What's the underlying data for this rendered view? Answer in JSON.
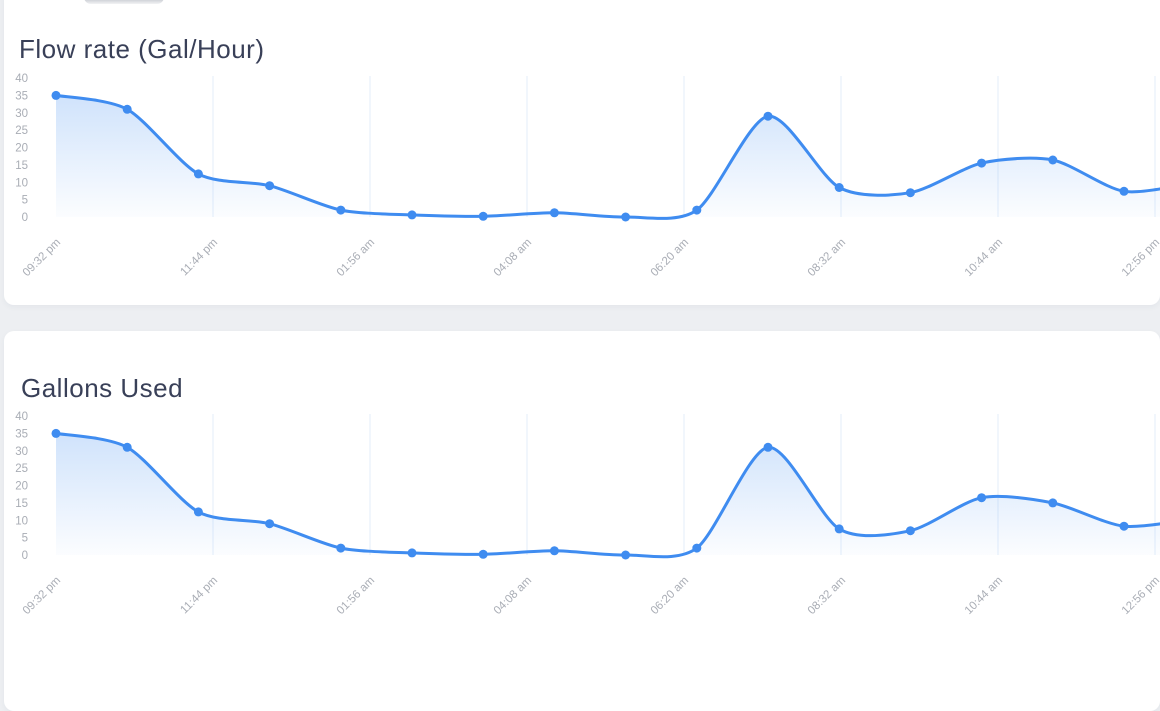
{
  "page": {
    "background_color": "#edeff2",
    "card_background_color": "#ffffff",
    "title_color": "#394058",
    "axis_label_color": "#a9adb5",
    "gridline_color": "#e3edfa",
    "accent_blue": "#3f8cf0"
  },
  "chart_data": [
    {
      "type": "area",
      "title": "Flow rate (Gal/Hour)",
      "x_tick_labels": [
        "09:32 pm",
        "11:44 pm",
        "01:56 am",
        "04:08 am",
        "06:20 am",
        "08:32 am",
        "10:44 am",
        "12:56 pm"
      ],
      "y_ticks": [
        0,
        5,
        10,
        15,
        20,
        25,
        30,
        35,
        40
      ],
      "ylim": [
        0,
        40
      ],
      "values": [
        35,
        31,
        12.4,
        9,
        2,
        0.6,
        0.2,
        1.2,
        0,
        2,
        29,
        8.5,
        7,
        15.5,
        16.4,
        7.4
      ],
      "edge_continuation_value": 10,
      "line_color": "#3f8cf0",
      "marker_color": "#3f8cf0",
      "fill_top_color": "rgba(63,140,240,0.28)",
      "fill_bottom_color": "rgba(63,140,240,0.02)",
      "grid": "vertical-only",
      "legend": "none"
    },
    {
      "type": "area",
      "title": "Gallons Used",
      "x_tick_labels": [
        "09:32 pm",
        "11:44 pm",
        "01:56 am",
        "04:08 am",
        "06:20 am",
        "08:32 am",
        "10:44 am",
        "12:56 pm"
      ],
      "y_ticks": [
        0,
        5,
        10,
        15,
        20,
        25,
        30,
        35,
        40
      ],
      "ylim": [
        0,
        40
      ],
      "values": [
        35,
        31,
        12.4,
        9,
        2,
        0.6,
        0.2,
        1.2,
        0,
        2,
        31,
        7.5,
        7,
        16.5,
        15,
        8.3
      ],
      "edge_continuation_value": 10.5,
      "line_color": "#3f8cf0",
      "marker_color": "#3f8cf0",
      "fill_top_color": "rgba(63,140,240,0.28)",
      "fill_bottom_color": "rgba(63,140,240,0.02)",
      "grid": "vertical-only",
      "legend": "none"
    }
  ]
}
